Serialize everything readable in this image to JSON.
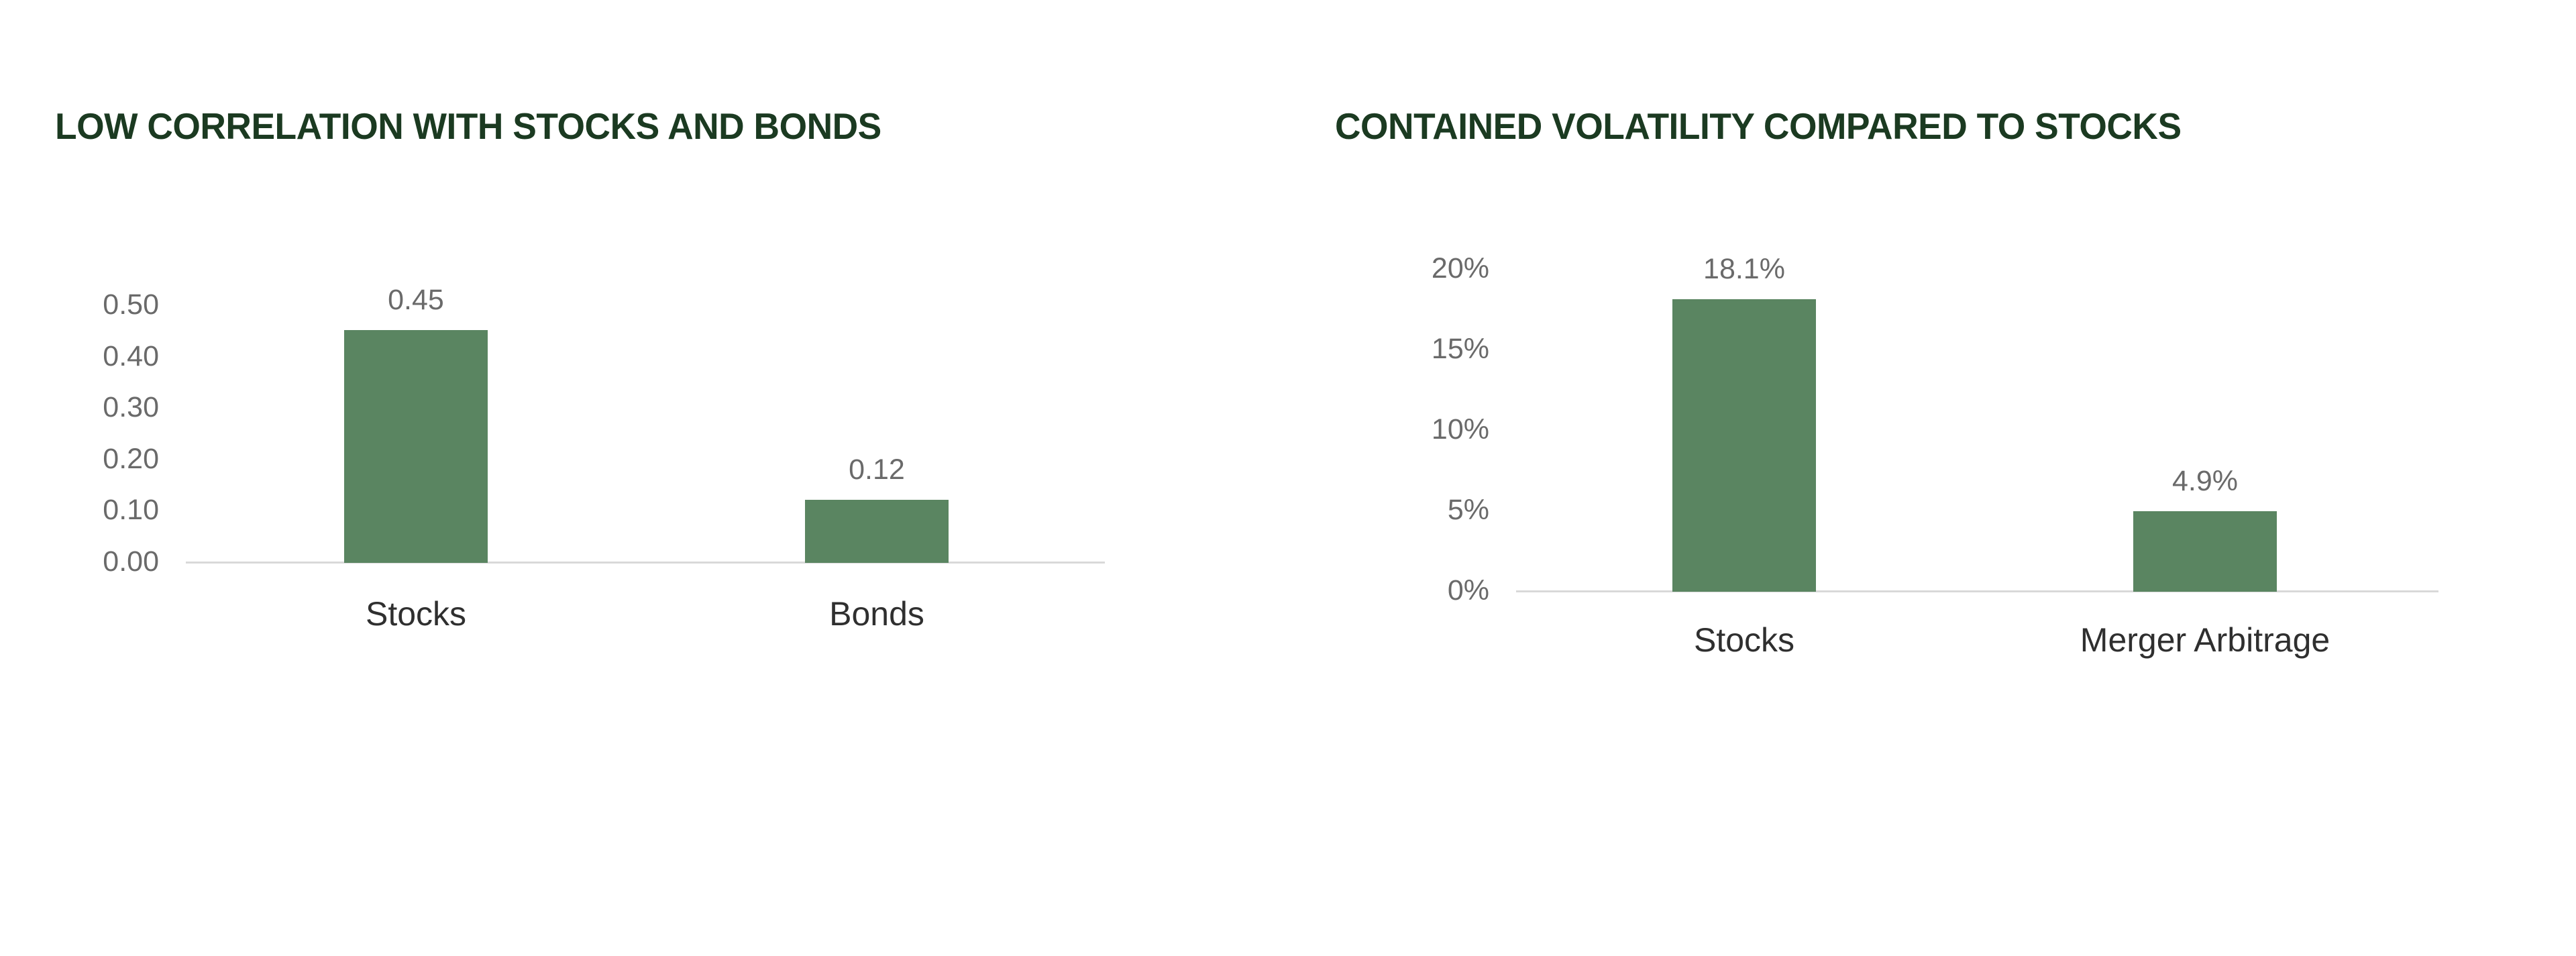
{
  "colors": {
    "bar": "#5a8561",
    "title": "#1b3a21",
    "tick": "#6a6a6a",
    "category": "#2f2f2f",
    "axis_line": "#d9d9d9",
    "background": "#ffffff"
  },
  "chart_data": [
    {
      "type": "bar",
      "title": "LOW CORRELATION WITH STOCKS AND BONDS",
      "categories": [
        "Stocks",
        "Bonds"
      ],
      "values": [
        0.45,
        0.12
      ],
      "value_labels": [
        "0.45",
        "0.12"
      ],
      "y_tick_labels": [
        "0.50",
        "0.40",
        "0.30",
        "0.20",
        "0.10",
        "0.00"
      ],
      "y_tick_values": [
        0.5,
        0.4,
        0.3,
        0.2,
        0.1,
        0.0
      ],
      "ylim": [
        0,
        0.5
      ],
      "xlabel": "",
      "ylabel": "",
      "grid": false,
      "legend": false,
      "bar_color": "#5a8561"
    },
    {
      "type": "bar",
      "title": "CONTAINED VOLATILITY COMPARED TO STOCKS",
      "categories": [
        "Stocks",
        "Merger Arbitrage"
      ],
      "values": [
        18.1,
        4.9
      ],
      "value_labels": [
        "18.1%",
        "4.9%"
      ],
      "y_tick_labels": [
        "20%",
        "15%",
        "10%",
        "5%",
        "0%"
      ],
      "y_tick_values": [
        20,
        15,
        10,
        5,
        0
      ],
      "ylim": [
        0,
        20
      ],
      "xlabel": "",
      "ylabel": "",
      "grid": false,
      "legend": false,
      "bar_color": "#5a8561"
    }
  ]
}
